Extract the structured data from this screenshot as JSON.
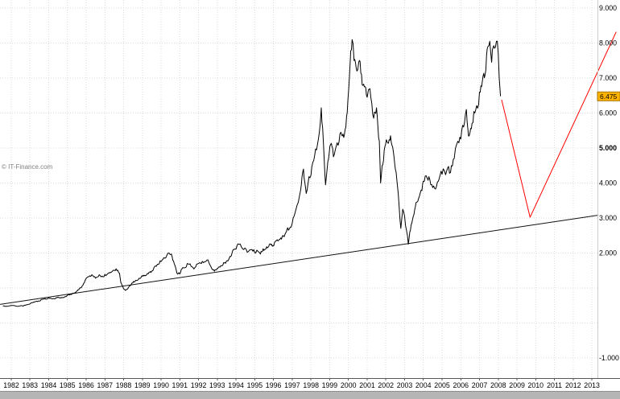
{
  "watermark": "© IT-Finance.com",
  "colors": {
    "price": "#000000",
    "trendline": "#111111",
    "projection": "#ff0000",
    "grid": "#dcdcdc",
    "tag_bg": "#ffb400",
    "tag_border": "#a87400",
    "tag_text": "#000000",
    "scrollbar": "#b5b5b5"
  },
  "chart_data": {
    "type": "line",
    "title": "",
    "xlabel": "",
    "ylabel": "",
    "grid": "dotted",
    "legend": "none",
    "y_axis_side": "right",
    "xlim": [
      1981.4,
      2014.5
    ],
    "ylim": [
      -1.575,
      9.23
    ],
    "x_ticks": [
      1982,
      1983,
      1984,
      1985,
      1986,
      1987,
      1988,
      1989,
      1990,
      1991,
      1992,
      1993,
      1994,
      1995,
      1996,
      1997,
      1998,
      1999,
      2000,
      2001,
      2002,
      2003,
      2004,
      2005,
      2006,
      2007,
      2008,
      2009,
      2010,
      2011,
      2012,
      2013
    ],
    "y_ticks": [
      {
        "label": "9.000",
        "value": 9,
        "bold": false
      },
      {
        "label": "8.000",
        "value": 8,
        "bold": false
      },
      {
        "label": "7.000",
        "value": 7,
        "bold": false
      },
      {
        "label": "6.000",
        "value": 6,
        "bold": false
      },
      {
        "label": "5.000",
        "value": 5,
        "bold": true
      },
      {
        "label": "4.000",
        "value": 4,
        "bold": false
      },
      {
        "label": "3.000",
        "value": 3,
        "bold": false
      },
      {
        "label": "2.000",
        "value": 2,
        "bold": false
      },
      {
        "label": "-1.000",
        "value": -1,
        "bold": false
      }
    ],
    "y_gridlines": [
      -1,
      0,
      1,
      2,
      3,
      4,
      5,
      6,
      7,
      8,
      9
    ],
    "series": [
      {
        "name": "trendline",
        "color": "#111111",
        "style": "straight",
        "points": [
          [
            1981.4,
            0.53
          ],
          [
            2013.35,
            3.08
          ]
        ]
      },
      {
        "name": "price",
        "color": "#000000",
        "style": "noisy",
        "points": [
          [
            1981.55,
            0.49
          ],
          [
            1982,
            0.5
          ],
          [
            1982.4,
            0.48
          ],
          [
            1982.8,
            0.52
          ],
          [
            1983.2,
            0.6
          ],
          [
            1983.6,
            0.67
          ],
          [
            1984,
            0.72
          ],
          [
            1984.3,
            0.69
          ],
          [
            1984.7,
            0.73
          ],
          [
            1985,
            0.79
          ],
          [
            1985.3,
            0.85
          ],
          [
            1985.6,
            0.95
          ],
          [
            1985.9,
            1.15
          ],
          [
            1986.1,
            1.32
          ],
          [
            1986.3,
            1.38
          ],
          [
            1986.5,
            1.28
          ],
          [
            1986.7,
            1.38
          ],
          [
            1986.9,
            1.32
          ],
          [
            1987.1,
            1.38
          ],
          [
            1987.4,
            1.48
          ],
          [
            1987.6,
            1.55
          ],
          [
            1987.78,
            1.42
          ],
          [
            1987.85,
            1.16
          ],
          [
            1988,
            0.98
          ],
          [
            1988.1,
            0.93
          ],
          [
            1988.3,
            1.05
          ],
          [
            1988.6,
            1.18
          ],
          [
            1988.9,
            1.28
          ],
          [
            1989.2,
            1.36
          ],
          [
            1989.5,
            1.48
          ],
          [
            1989.75,
            1.62
          ],
          [
            1989.95,
            1.78
          ],
          [
            1990.1,
            1.82
          ],
          [
            1990.3,
            1.92
          ],
          [
            1990.55,
            1.97
          ],
          [
            1990.7,
            1.7
          ],
          [
            1990.85,
            1.42
          ],
          [
            1991,
            1.4
          ],
          [
            1991.15,
            1.58
          ],
          [
            1991.4,
            1.7
          ],
          [
            1991.6,
            1.62
          ],
          [
            1991.8,
            1.58
          ],
          [
            1992,
            1.7
          ],
          [
            1992.2,
            1.76
          ],
          [
            1992.45,
            1.8
          ],
          [
            1992.65,
            1.62
          ],
          [
            1992.85,
            1.48
          ],
          [
            1993,
            1.56
          ],
          [
            1993.3,
            1.66
          ],
          [
            1993.6,
            1.8
          ],
          [
            1993.9,
            2.1
          ],
          [
            1994.1,
            2.26
          ],
          [
            1994.35,
            2.12
          ],
          [
            1994.6,
            2.02
          ],
          [
            1994.85,
            2.1
          ],
          [
            1995.05,
            2
          ],
          [
            1995.3,
            1.97
          ],
          [
            1995.6,
            2.12
          ],
          [
            1995.9,
            2.25
          ],
          [
            1996.2,
            2.38
          ],
          [
            1996.5,
            2.5
          ],
          [
            1996.8,
            2.65
          ],
          [
            1997,
            2.85
          ],
          [
            1997.2,
            3.25
          ],
          [
            1997.45,
            3.8
          ],
          [
            1997.6,
            4.4
          ],
          [
            1997.75,
            3.7
          ],
          [
            1997.95,
            4.15
          ],
          [
            1998.15,
            4.65
          ],
          [
            1998.35,
            5.1
          ],
          [
            1998.55,
            6.15
          ],
          [
            1998.7,
            4.8
          ],
          [
            1998.78,
            3.95
          ],
          [
            1998.9,
            4.6
          ],
          [
            1999.05,
            5.1
          ],
          [
            1999.2,
            4.75
          ],
          [
            1999.4,
            5.15
          ],
          [
            1999.6,
            5.45
          ],
          [
            1999.75,
            5.3
          ],
          [
            1999.9,
            5.9
          ],
          [
            2000.05,
            7
          ],
          [
            2000.2,
            8.1
          ],
          [
            2000.3,
            7.5
          ],
          [
            2000.45,
            7.2
          ],
          [
            2000.55,
            7.45
          ],
          [
            2000.7,
            7.1
          ],
          [
            2000.85,
            6.75
          ],
          [
            2001,
            6.45
          ],
          [
            2001.15,
            6.7
          ],
          [
            2001.35,
            5.85
          ],
          [
            2001.5,
            6.15
          ],
          [
            2001.65,
            5.2
          ],
          [
            2001.72,
            4
          ],
          [
            2001.8,
            4.5
          ],
          [
            2001.95,
            5.05
          ],
          [
            2002.1,
            5.15
          ],
          [
            2002.25,
            5.35
          ],
          [
            2002.4,
            4.9
          ],
          [
            2002.55,
            4.3
          ],
          [
            2002.7,
            3.4
          ],
          [
            2002.8,
            2.7
          ],
          [
            2002.9,
            3.25
          ],
          [
            2003,
            3.05
          ],
          [
            2003.1,
            2.65
          ],
          [
            2003.2,
            2.25
          ],
          [
            2003.35,
            2.8
          ],
          [
            2003.5,
            3.1
          ],
          [
            2003.65,
            3.45
          ],
          [
            2003.85,
            3.75
          ],
          [
            2004,
            4.05
          ],
          [
            2004.2,
            4.15
          ],
          [
            2004.4,
            3.95
          ],
          [
            2004.6,
            3.85
          ],
          [
            2004.8,
            4.05
          ],
          [
            2005,
            4.25
          ],
          [
            2005.25,
            4.35
          ],
          [
            2005.45,
            4.3
          ],
          [
            2005.65,
            4.7
          ],
          [
            2005.9,
            5.15
          ],
          [
            2006.1,
            5.65
          ],
          [
            2006.3,
            6.1
          ],
          [
            2006.45,
            5.35
          ],
          [
            2006.6,
            5.7
          ],
          [
            2006.8,
            6.1
          ],
          [
            2007,
            6.6
          ],
          [
            2007.15,
            6.9
          ],
          [
            2007.3,
            7.1
          ],
          [
            2007.45,
            7.9
          ],
          [
            2007.55,
            8.05
          ],
          [
            2007.65,
            7.45
          ],
          [
            2007.8,
            7.85
          ],
          [
            2007.9,
            8.05
          ],
          [
            2008,
            7.7
          ],
          [
            2008.05,
            7
          ],
          [
            2008.12,
            6.48
          ]
        ]
      },
      {
        "name": "projection",
        "color": "#ff0000",
        "style": "straight",
        "points": [
          [
            2008.18,
            6.38
          ],
          [
            2009.7,
            3.02
          ],
          [
            2014.3,
            8.32
          ]
        ]
      }
    ],
    "annotations": [
      {
        "type": "price_tag",
        "text": "6.475",
        "value": 6.475
      }
    ]
  }
}
